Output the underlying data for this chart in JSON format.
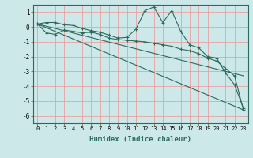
{
  "xlabel": "Humidex (Indice chaleur)",
  "ylabel": "",
  "background_color": "#cce8e8",
  "grid_color": "#e8a0a0",
  "line_color": "#2a6b5e",
  "xlim": [
    -0.5,
    23.5
  ],
  "ylim": [
    -6.5,
    1.5
  ],
  "yticks": [
    1,
    0,
    -1,
    -2,
    -3,
    -4,
    -5,
    -6
  ],
  "xticks": [
    0,
    1,
    2,
    3,
    4,
    5,
    6,
    7,
    8,
    9,
    10,
    11,
    12,
    13,
    14,
    15,
    16,
    17,
    18,
    19,
    20,
    21,
    22,
    23
  ],
  "lines": [
    {
      "x": [
        0,
        1,
        2,
        3,
        4,
        5,
        6,
        7,
        8,
        9,
        10,
        11,
        12,
        13,
        14,
        15,
        16,
        17,
        18,
        19,
        20,
        21,
        22,
        23
      ],
      "y": [
        0.2,
        0.3,
        0.3,
        0.15,
        0.1,
        -0.1,
        -0.25,
        -0.35,
        -0.55,
        -0.75,
        -0.7,
        -0.15,
        1.1,
        1.35,
        0.3,
        1.1,
        -0.3,
        -1.2,
        -1.4,
        -2.0,
        -2.1,
        -3.1,
        -3.9,
        -5.5
      ],
      "marker": true
    },
    {
      "x": [
        0,
        1,
        2,
        3,
        4,
        5,
        6,
        7,
        8,
        9,
        10,
        11,
        12,
        13,
        14,
        15,
        16,
        17,
        18,
        19,
        20,
        21,
        22,
        23
      ],
      "y": [
        0.2,
        -0.4,
        -0.5,
        -0.2,
        -0.3,
        -0.4,
        -0.35,
        -0.5,
        -0.75,
        -0.85,
        -0.9,
        -0.95,
        -1.0,
        -1.1,
        -1.2,
        -1.3,
        -1.5,
        -1.6,
        -1.8,
        -2.1,
        -2.3,
        -2.8,
        -3.3,
        -5.6
      ],
      "marker": true
    },
    {
      "x": [
        0,
        23
      ],
      "y": [
        0.2,
        -3.3
      ],
      "marker": false
    },
    {
      "x": [
        0,
        23
      ],
      "y": [
        0.2,
        -5.6
      ],
      "marker": false
    }
  ]
}
